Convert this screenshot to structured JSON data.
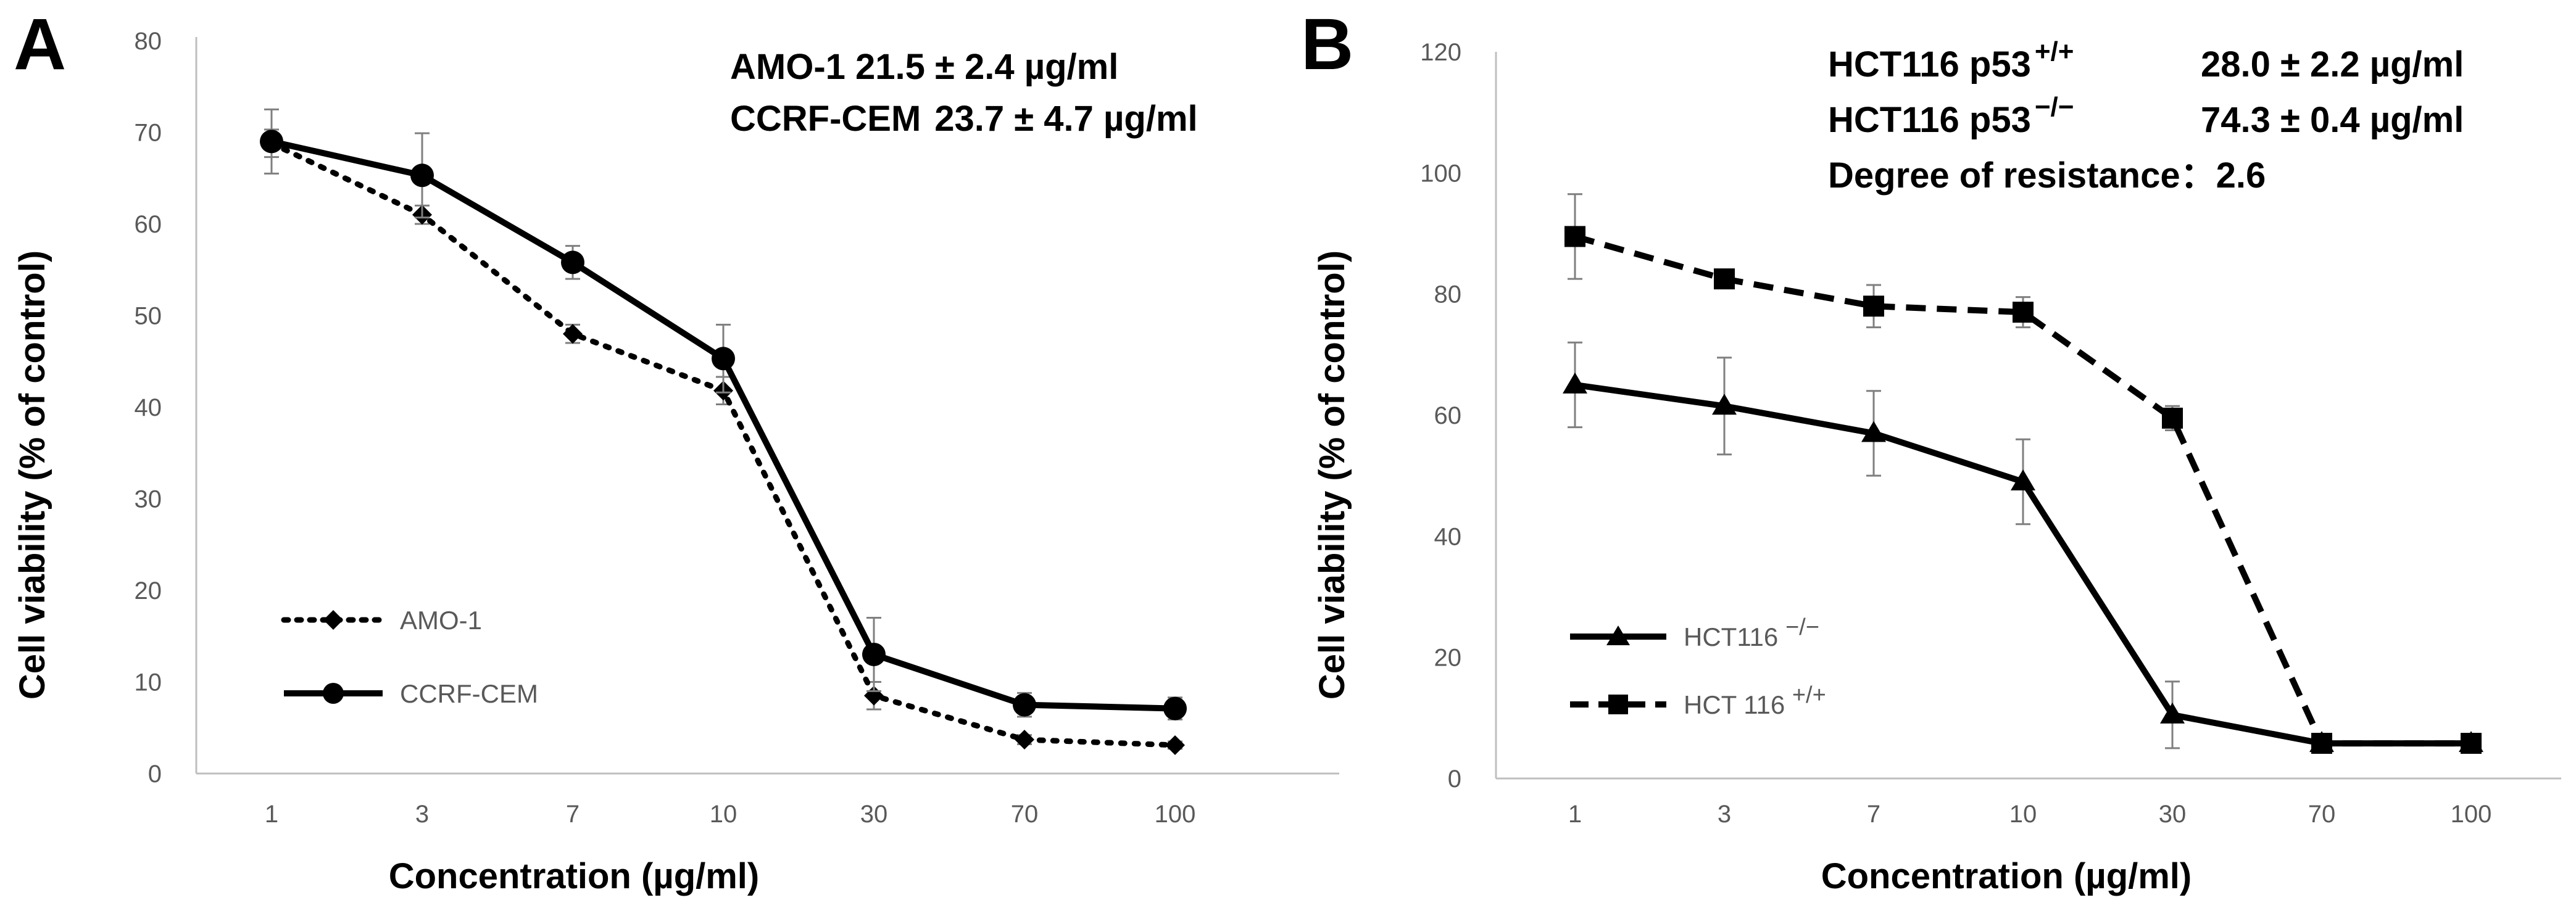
{
  "chart_data": [
    {
      "panel_label": "A",
      "type": "line",
      "categories": [
        "1",
        "3",
        "7",
        "10",
        "30",
        "70",
        "100"
      ],
      "ylim": [
        0,
        80
      ],
      "yticks": [
        "0",
        "10",
        "20",
        "30",
        "40",
        "50",
        "60",
        "70",
        "80"
      ],
      "xlabel": "Concentration (µg/ml)",
      "ylabel": "Cell viability (% of control)",
      "series": [
        {
          "name": "AMO-1",
          "style": "dotted",
          "marker": "diamond",
          "values": [
            68.8,
            61,
            48,
            41.8,
            8.5,
            3.7,
            3.1
          ],
          "errors": [
            1.5,
            1.0,
            1.0,
            1.5,
            1.5,
            0.5,
            0.4
          ]
        },
        {
          "name": "CCRF-CEM",
          "style": "solid",
          "marker": "circle",
          "values": [
            69,
            65.3,
            55.8,
            45.3,
            13.0,
            7.5,
            7.1
          ],
          "errors": [
            3.5,
            4.6,
            1.8,
            3.7,
            4.0,
            1.3,
            1.2
          ]
        }
      ],
      "legend": [
        "AMO-1",
        "CCRF-CEM"
      ],
      "annotations": [
        {
          "name": "AMO-1",
          "value": "21.5 ± 2.4  µg/ml"
        },
        {
          "name": "CCRF-CEM",
          "value": "23.7 ± 4.7 µg/ml"
        }
      ]
    },
    {
      "panel_label": "B",
      "type": "line",
      "categories": [
        "1",
        "3",
        "7",
        "10",
        "30",
        "70",
        "100"
      ],
      "ylim": [
        0,
        120
      ],
      "yticks": [
        "0",
        "20",
        "40",
        "60",
        "80",
        "100",
        "120"
      ],
      "xlabel": "Concentration (µg/ml)",
      "ylabel": "Cell viability (% of control)",
      "series": [
        {
          "name": "HCT116 −/−",
          "style": "solid",
          "marker": "triangle",
          "values": [
            65,
            61.5,
            57,
            49,
            10.5,
            5.8,
            5.8
          ],
          "errors": [
            7,
            8,
            7,
            7,
            5.5,
            0.5,
            0.5
          ]
        },
        {
          "name": "HCT 116 +/+",
          "style": "dashed",
          "marker": "square",
          "values": [
            89.5,
            82.5,
            78,
            77,
            59.5,
            5.8,
            5.8
          ],
          "errors": [
            7,
            1,
            3.5,
            2.5,
            2,
            0.5,
            0.5
          ]
        }
      ],
      "legend": [
        {
          "base": "HCT116 ",
          "sup": "−/−"
        },
        {
          "base": "HCT 116 ",
          "sup": "+/+"
        }
      ],
      "annotations": [
        {
          "name": "HCT116 p53",
          "sup": "+/+",
          "value": "28.0 ± 2.2 µg/ml"
        },
        {
          "name": "HCT116 p53",
          "sup": "−/−",
          "value": "74.3 ± 0.4 µg/ml"
        },
        {
          "name": "Degree of resistance：",
          "value": "2.6"
        }
      ]
    }
  ]
}
